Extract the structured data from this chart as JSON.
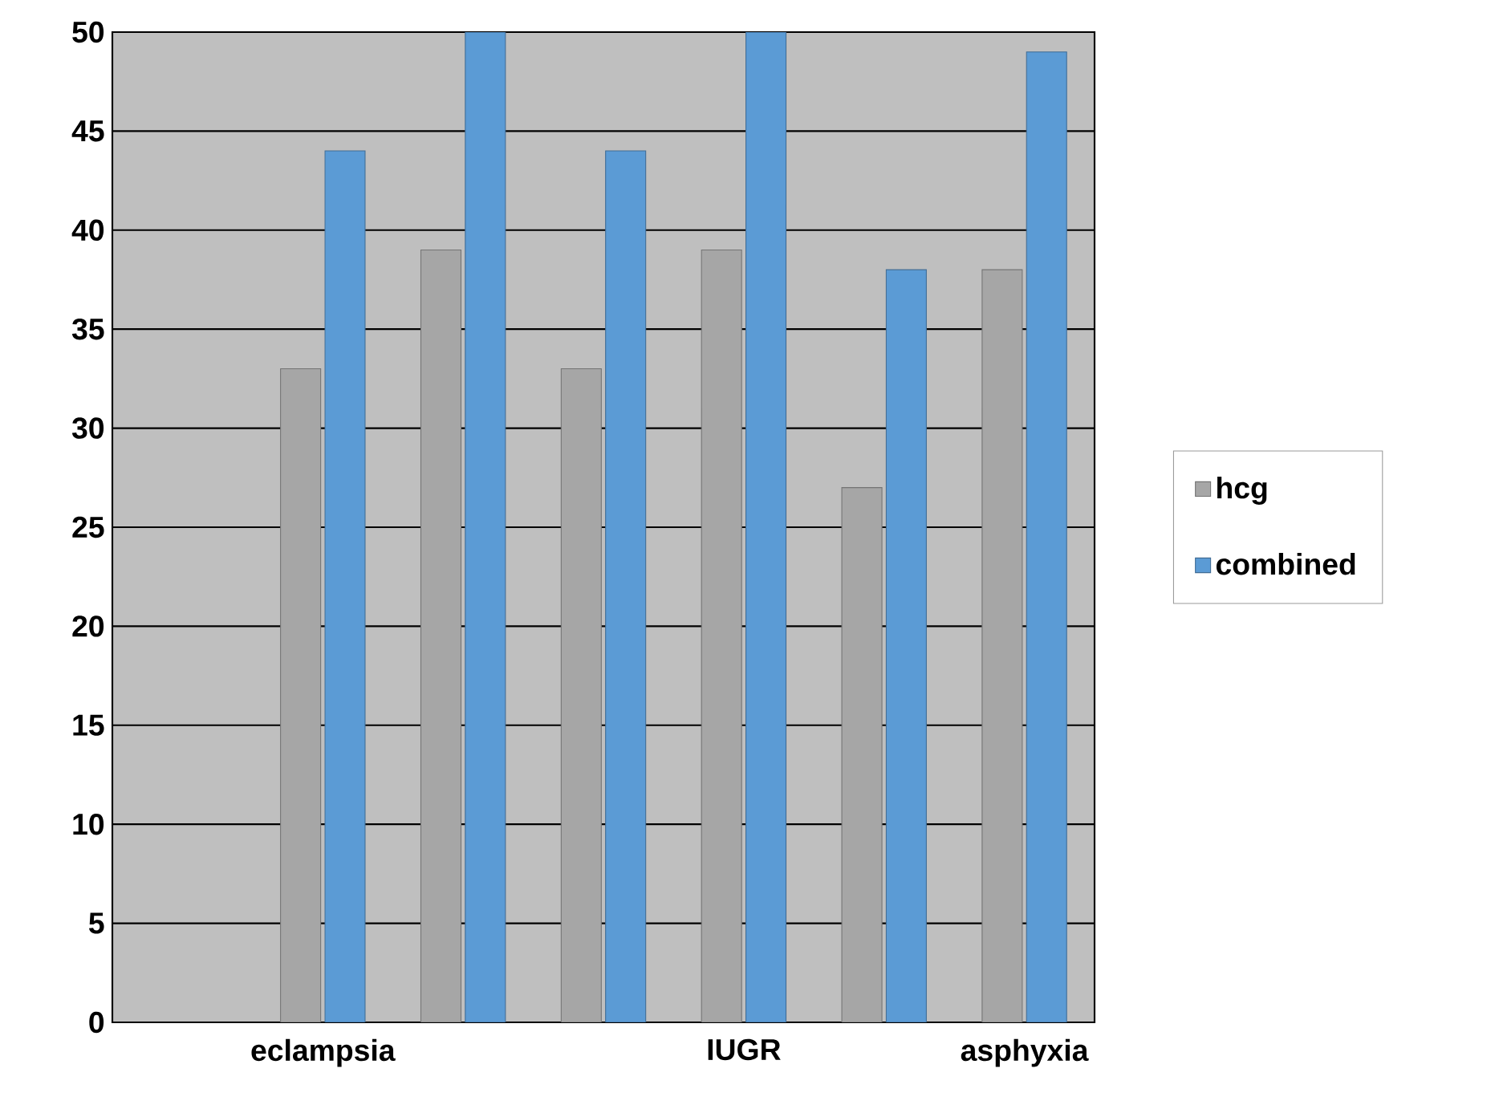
{
  "chart_data": {
    "type": "bar",
    "categories": [
      null,
      "eclampsia",
      null,
      null,
      "IUGR",
      null,
      "asphyxia"
    ],
    "series": [
      {
        "name": "hcg",
        "color": "#a6a6a6",
        "values": [
          null,
          33,
          39,
          33,
          39,
          27,
          38
        ]
      },
      {
        "name": "combined",
        "color": "#5b9bd5",
        "values": [
          null,
          44,
          50,
          44,
          50,
          38,
          49
        ]
      }
    ],
    "ylim": [
      0,
      50
    ],
    "yticks": [
      0,
      5,
      10,
      15,
      20,
      25,
      30,
      35,
      40,
      45,
      50
    ],
    "grid": "y",
    "legend": "right"
  }
}
